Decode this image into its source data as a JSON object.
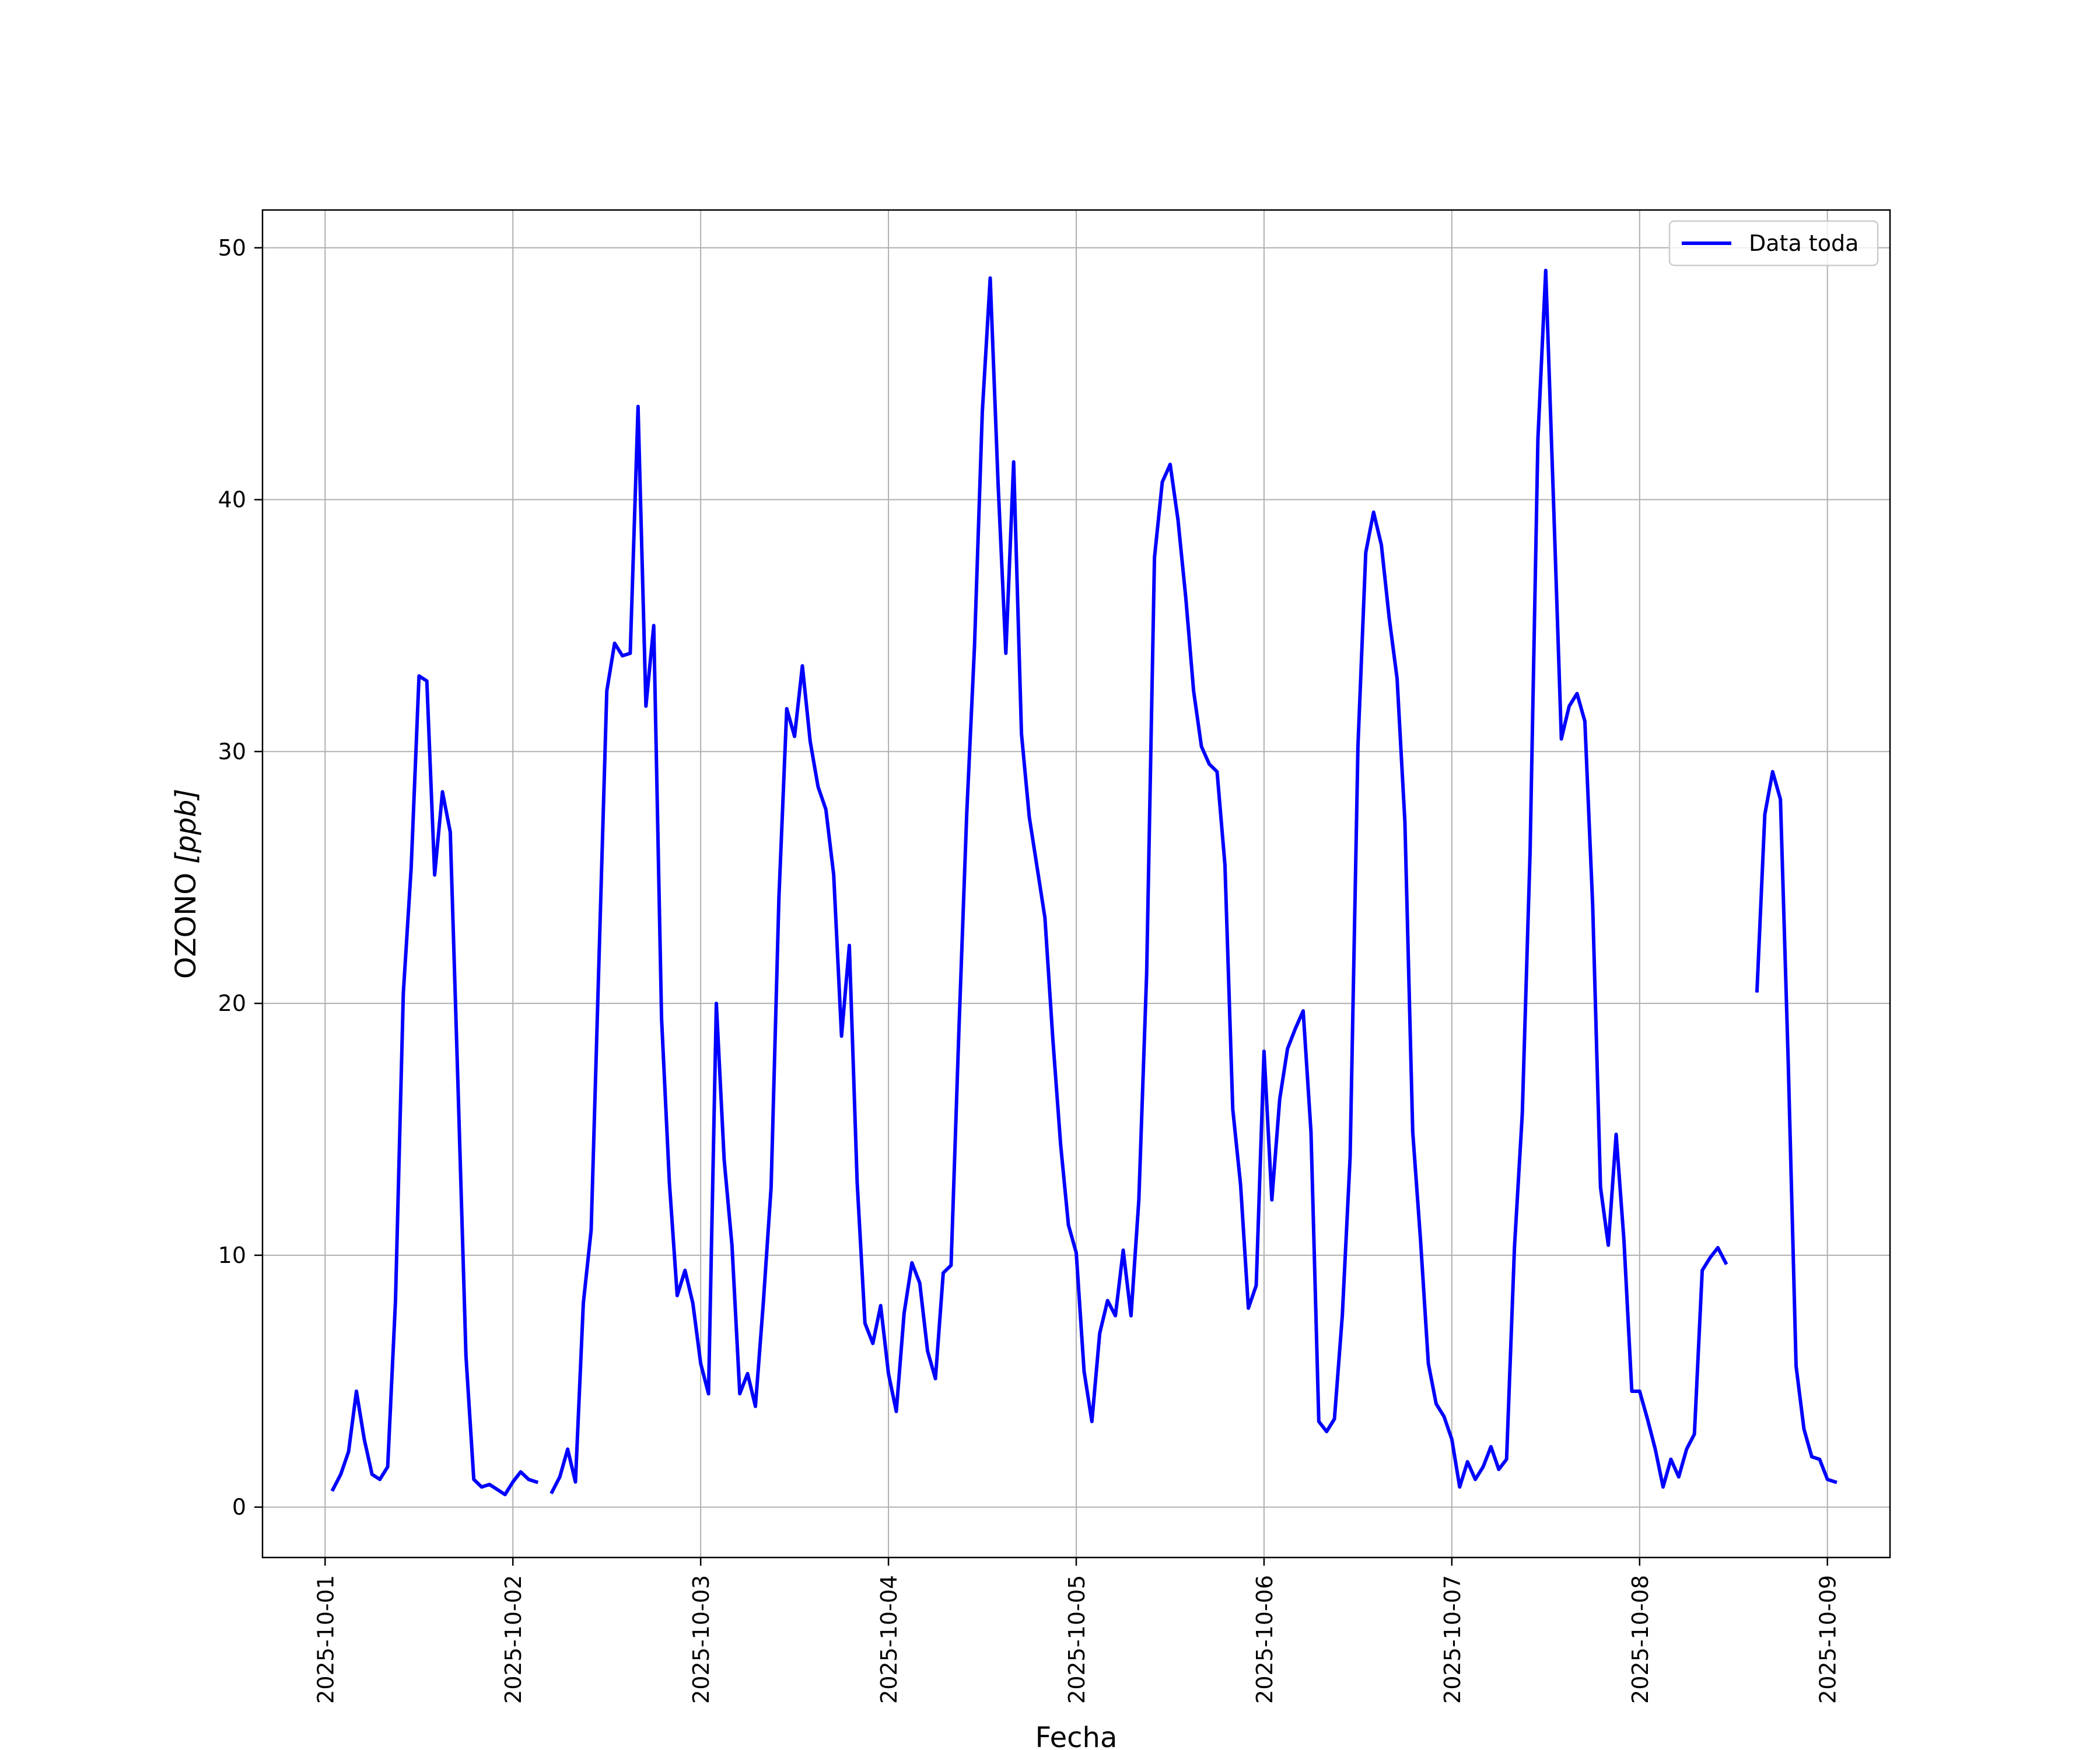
{
  "chart_data": {
    "type": "line",
    "xlabel": "Fecha",
    "ylabel_main": "OZONO ",
    "ylabel_unit": "[ppb]",
    "xlim": [
      "2025-09-30T16:00",
      "2025-10-09T08:00"
    ],
    "ylim": [
      -2,
      51.5
    ],
    "x_ticks": [
      "2025-10-01",
      "2025-10-02",
      "2025-10-03",
      "2025-10-04",
      "2025-10-05",
      "2025-10-06",
      "2025-10-07",
      "2025-10-08",
      "2025-10-09"
    ],
    "y_ticks": [
      0,
      10,
      20,
      30,
      40,
      50
    ],
    "grid": true,
    "legend_position": "top-right",
    "series": [
      {
        "name": "Data toda",
        "color": "#0000ff",
        "start": "2025-10-01T01:00",
        "step_hours": 1,
        "values": [
          0.7,
          1.3,
          2.2,
          4.6,
          2.7,
          1.3,
          1.1,
          1.6,
          8.2,
          20.4,
          25.4,
          33.0,
          32.8,
          25.1,
          28.4,
          26.8,
          16.6,
          6.0,
          1.1,
          0.8,
          0.9,
          0.7,
          0.5,
          1.0,
          1.4,
          1.1,
          1.0,
          null,
          0.6,
          1.2,
          2.3,
          1.0,
          8.1,
          11.0,
          21.7,
          32.4,
          34.3,
          33.8,
          33.9,
          43.7,
          31.8,
          35.0,
          19.4,
          12.9,
          8.4,
          9.4,
          8.1,
          5.7,
          4.5,
          20.0,
          13.8,
          10.4,
          4.5,
          5.3,
          4.0,
          8.1,
          12.7,
          24.2,
          31.7,
          30.6,
          33.4,
          30.4,
          28.6,
          27.7,
          25.1,
          18.7,
          22.3,
          12.9,
          7.3,
          6.5,
          8.0,
          5.3,
          3.8,
          7.7,
          9.7,
          8.9,
          6.2,
          5.1,
          9.3,
          9.6,
          18.9,
          27.5,
          34.2,
          43.5,
          48.8,
          40.7,
          33.9,
          41.5,
          30.7,
          27.4,
          25.4,
          23.4,
          18.6,
          14.4,
          11.2,
          10.1,
          5.4,
          3.4,
          6.9,
          8.2,
          7.6,
          10.2,
          7.6,
          12.2,
          21.2,
          37.7,
          40.7,
          41.4,
          39.2,
          36.1,
          32.4,
          30.2,
          29.5,
          29.2,
          25.5,
          15.8,
          12.8,
          7.9,
          8.8,
          18.1,
          12.2,
          16.2,
          18.2,
          19.0,
          19.7,
          14.9,
          3.4,
          3.0,
          3.5,
          7.6,
          13.9,
          30.2,
          37.9,
          39.5,
          38.2,
          35.3,
          32.9,
          27.2,
          14.9,
          10.6,
          5.7,
          4.1,
          3.6,
          2.7,
          0.8,
          1.8,
          1.1,
          1.6,
          2.4,
          1.5,
          1.9,
          10.3,
          15.6,
          26.0,
          42.4,
          49.1,
          39.9,
          30.5,
          31.8,
          32.3,
          31.2,
          23.9,
          12.7,
          10.4,
          14.8,
          10.6,
          4.6,
          4.6,
          3.5,
          2.3,
          0.8,
          1.9,
          1.2,
          2.3,
          2.9,
          9.4,
          9.9,
          10.3,
          9.7,
          null,
          null,
          null,
          20.5,
          27.5,
          29.2,
          28.1,
          17.6,
          5.6,
          3.1,
          2.0,
          1.9,
          1.1,
          1.0
        ]
      }
    ]
  }
}
